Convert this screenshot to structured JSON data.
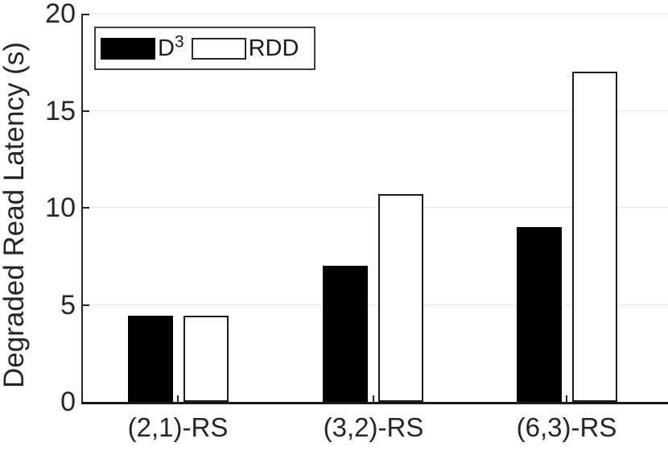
{
  "chart_data": {
    "type": "bar",
    "title": "",
    "categories": [
      "(2,1)-RS",
      "(3,2)-RS",
      "(6,3)-RS"
    ],
    "series": [
      {
        "name": "D3",
        "color": "#000000",
        "values": [
          4.45,
          7.0,
          9.0
        ]
      },
      {
        "name": "RDD",
        "color": "#ffffff",
        "values": [
          4.45,
          10.7,
          17.0
        ]
      }
    ],
    "xlabel": "",
    "ylabel": "Degraded Read Latency (s)",
    "ylim": [
      0,
      20
    ],
    "yticks": [
      0,
      5,
      10,
      15,
      20
    ],
    "grid": "horizontal",
    "legend_position": "top-left"
  },
  "legend": {
    "items": [
      {
        "label_base": "D",
        "label_sup": "3",
        "swatch_color": "#000000"
      },
      {
        "label_base": "RDD",
        "label_sup": "",
        "swatch_color": "#ffffff"
      }
    ]
  },
  "colors": {
    "background": "#ffffff",
    "axis": "#262626",
    "grid": "#e6e6e6",
    "text": "#262626",
    "bar_edge": "#1a1a1a",
    "bar_d3": "#000000",
    "bar_rdd": "#ffffff"
  }
}
